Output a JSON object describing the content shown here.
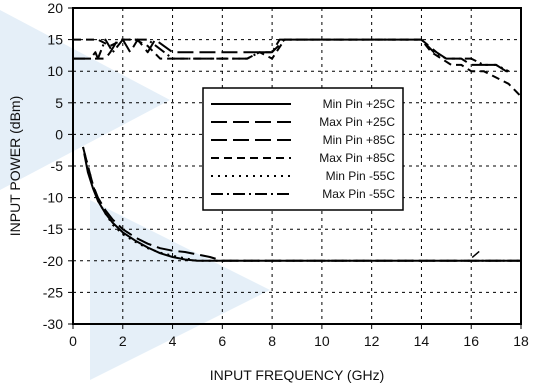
{
  "chart_data": {
    "type": "line",
    "xlabel": "INPUT FREQUENCY (GHz)",
    "ylabel": "INPUT POWER (dBm)",
    "xlim": [
      0,
      18
    ],
    "ylim": [
      -30,
      20
    ],
    "xticks": [
      0,
      2,
      4,
      6,
      8,
      10,
      12,
      14,
      16,
      18
    ],
    "yticks": [
      -30,
      -25,
      -20,
      -15,
      -10,
      -5,
      0,
      5,
      10,
      15,
      20
    ],
    "grid": true,
    "legend_position": "center",
    "series": [
      {
        "name": "Min Pin  +25C",
        "style": "solid",
        "x": [
          0.45,
          0.6,
          0.8,
          1.0,
          1.3,
          1.6,
          2.0,
          2.5,
          3.0,
          3.5,
          4.0,
          4.5,
          5.0,
          6.0,
          8.0,
          10.0,
          12.0,
          14.0,
          16.0,
          17.0,
          18.0
        ],
        "y": [
          -3,
          -6,
          -8.5,
          -10.5,
          -12.5,
          -14,
          -15.5,
          -16.8,
          -17.9,
          -18.8,
          -19.4,
          -19.8,
          -20,
          -20,
          -20,
          -20,
          -20,
          -20,
          -20,
          -20,
          -20
        ]
      },
      {
        "name": "Max Pin  +25C",
        "style": "long-dash",
        "x": [
          0.0,
          0.7,
          0.9,
          1.0,
          1.3,
          1.5,
          1.8,
          2.0,
          2.3,
          2.6,
          3.0,
          3.3,
          4.0,
          6.0,
          8.0,
          8.5,
          10.0,
          12.0,
          14.0,
          14.3,
          14.6,
          15.0,
          15.3,
          15.6,
          16.0,
          16.3,
          16.6,
          17.0,
          17.4,
          17.6
        ],
        "y": [
          12,
          12,
          13,
          12,
          12,
          13,
          15,
          15,
          13,
          15,
          13,
          15,
          13,
          13,
          13,
          15,
          15,
          15,
          15,
          14,
          13,
          12,
          12,
          12,
          11,
          11,
          11,
          11,
          10,
          10
        ]
      },
      {
        "name": "Min Pin  +85C",
        "style": "long-dash",
        "x": [
          0.4,
          0.6,
          0.8,
          1.0,
          1.3,
          1.6,
          2.0,
          2.5,
          3.0,
          3.5,
          4.0,
          4.5,
          5.0,
          5.5,
          6.0,
          8.0,
          12.0,
          16.0,
          18.0
        ],
        "y": [
          -2,
          -5,
          -8,
          -10,
          -12,
          -13.5,
          -15,
          -16.3,
          -17.3,
          -18,
          -18.4,
          -18.6,
          -19,
          -19.4,
          -20,
          -20,
          -20,
          -20,
          -20
        ]
      },
      {
        "name": "Max Pin  +85C",
        "style": "short-dash",
        "x": [
          0.0,
          1.0,
          1.5,
          2.0,
          2.5,
          3.0,
          3.5,
          4.0,
          5.0,
          6.0,
          7.0,
          7.5,
          8.0,
          8.5,
          10.0,
          12.0,
          14.0,
          14.4,
          14.8,
          15.2,
          15.6,
          16.0,
          16.5,
          17.0,
          17.5,
          18.0
        ],
        "y": [
          15,
          15,
          14,
          15,
          15,
          14,
          12,
          12,
          12,
          12,
          12,
          13,
          12,
          15,
          15,
          15,
          15,
          13,
          12,
          11,
          11,
          10,
          10,
          9,
          8,
          6
        ]
      },
      {
        "name": "Min Pin  -55C",
        "style": "dotted",
        "x": [
          0.4,
          0.6,
          0.8,
          1.0,
          1.3,
          1.6,
          2.0,
          2.5,
          3.0,
          3.5,
          4.0,
          4.5,
          5.0,
          6.0,
          8.0,
          12.0,
          16.0,
          18.0
        ],
        "y": [
          -2,
          -5,
          -8,
          -10.5,
          -12.5,
          -14.3,
          -15.8,
          -17,
          -18,
          -18.7,
          -19.2,
          -19.6,
          -20,
          -20,
          -20,
          -20,
          -20,
          -20
        ]
      },
      {
        "name": "Max Pin  -55C",
        "style": "dash-dot",
        "x": [
          0.0,
          1.0,
          1.3,
          1.6,
          2.0,
          2.5,
          3.0,
          4.0,
          6.0,
          7.0,
          7.5,
          8.0,
          8.3,
          10.0,
          12.0,
          14.0,
          14.5,
          15.0,
          15.5,
          16.0,
          16.5,
          17.0,
          17.5
        ],
        "y": [
          12,
          12,
          15,
          13,
          15,
          15,
          15,
          12,
          12,
          12,
          13,
          13,
          15,
          15,
          15,
          15,
          13,
          12,
          12,
          12,
          11,
          11,
          10
        ]
      }
    ],
    "annotations": [
      {
        "text": "",
        "x": 16.2,
        "y": -19
      }
    ]
  }
}
